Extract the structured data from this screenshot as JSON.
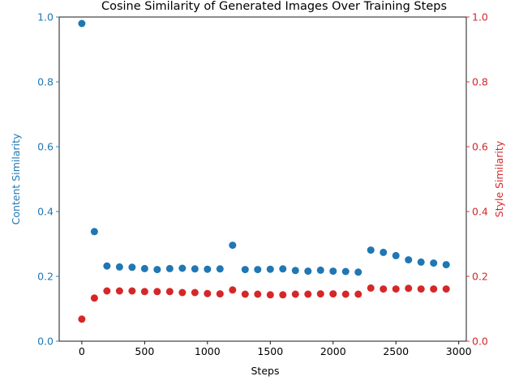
{
  "chart_data": {
    "type": "scatter",
    "title": "Cosine Similarity of Generated Images Over Training Steps",
    "xlabel": "Steps",
    "ylabel_left": "Content Similarity",
    "ylabel_right": "Style Similarity",
    "xlim": [
      -180,
      3060
    ],
    "ylim_left": [
      0,
      1
    ],
    "ylim_right": [
      0,
      1
    ],
    "x_ticks": [
      0,
      500,
      1000,
      1500,
      2000,
      2500,
      3000
    ],
    "x_tick_labels": [
      "0",
      "500",
      "1000",
      "1500",
      "2000",
      "2500",
      "3000"
    ],
    "y_ticks": [
      0,
      0.2,
      0.4,
      0.6,
      0.8,
      1.0
    ],
    "y_tick_labels": [
      "0.0",
      "0.2",
      "0.4",
      "0.6",
      "0.8",
      "1.0"
    ],
    "grid": false,
    "colors": {
      "left_axis": "#1f77b4",
      "right_axis": "#d62728",
      "axes": "#000000"
    },
    "x": [
      0,
      100,
      200,
      300,
      400,
      500,
      600,
      700,
      800,
      900,
      1000,
      1100,
      1200,
      1300,
      1400,
      1500,
      1600,
      1700,
      1800,
      1900,
      2000,
      2100,
      2200,
      2300,
      2400,
      2500,
      2600,
      2700,
      2800,
      2900
    ],
    "series": [
      {
        "name": "Content Similarity",
        "axis": "left",
        "color": "#1f77b4",
        "values": [
          0.98,
          0.338,
          0.232,
          0.229,
          0.228,
          0.224,
          0.221,
          0.224,
          0.225,
          0.223,
          0.222,
          0.223,
          0.296,
          0.221,
          0.221,
          0.222,
          0.223,
          0.218,
          0.216,
          0.219,
          0.216,
          0.215,
          0.213,
          0.281,
          0.274,
          0.264,
          0.251,
          0.244,
          0.241,
          0.236
        ]
      },
      {
        "name": "Style Similarity",
        "axis": "right",
        "color": "#d62728",
        "values": [
          0.068,
          0.133,
          0.155,
          0.155,
          0.155,
          0.153,
          0.153,
          0.153,
          0.15,
          0.15,
          0.147,
          0.146,
          0.158,
          0.145,
          0.145,
          0.143,
          0.143,
          0.145,
          0.145,
          0.146,
          0.146,
          0.145,
          0.145,
          0.164,
          0.161,
          0.161,
          0.163,
          0.161,
          0.161,
          0.161
        ]
      }
    ]
  }
}
